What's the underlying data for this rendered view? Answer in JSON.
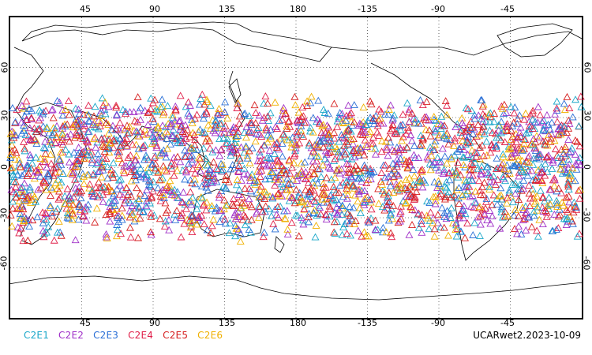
{
  "top_axis_labels": [
    "45",
    "90",
    "135",
    "180",
    "-135",
    "-90",
    "-45"
  ],
  "bottom_axis_labels": [
    "45",
    "90",
    "135",
    "180",
    "-135",
    "-90",
    "-45"
  ],
  "lat_labels_left": [
    "60",
    "30",
    "0",
    "-30",
    "-60"
  ],
  "lat_labels_right": [
    "60",
    "30",
    "0",
    "-30",
    "-60"
  ],
  "legend": [
    {
      "label": "C2E1",
      "color": "#1aa7c9"
    },
    {
      "label": "C2E2",
      "color": "#a030c8"
    },
    {
      "label": "C2E3",
      "color": "#2a6fd6"
    },
    {
      "label": "C2E4",
      "color": "#e0204a"
    },
    {
      "label": "C2E5",
      "color": "#d62020"
    },
    {
      "label": "C2E6",
      "color": "#f0b000"
    }
  ],
  "footer": "UCARwet2.2023-10-09",
  "map": {
    "lon_range": [
      0,
      360
    ],
    "lat_range": [
      -90,
      90
    ],
    "marker_lat_band": [
      -45,
      45
    ],
    "marker_shape": "open-triangle"
  }
}
